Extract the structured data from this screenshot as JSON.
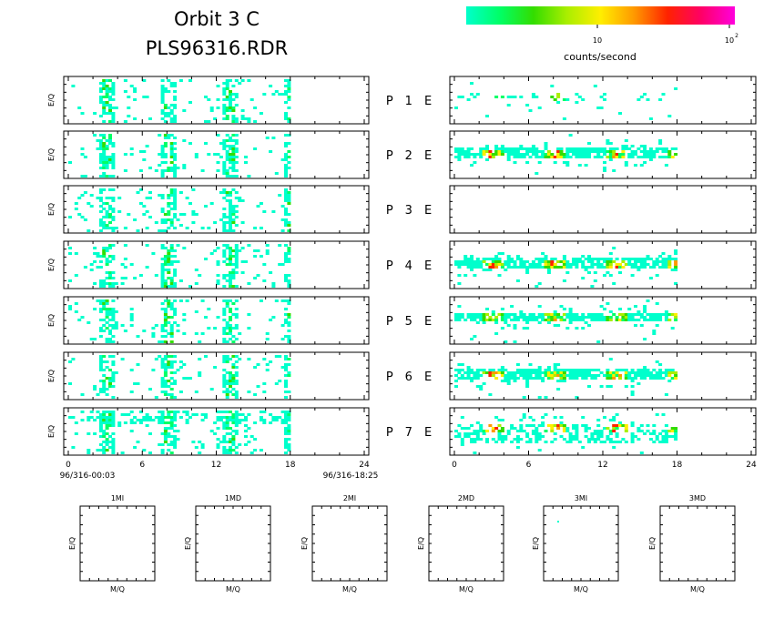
{
  "header": {
    "title_line1": "Orbit 3 C",
    "title_line2": "PLS96316.RDR"
  },
  "colorbar": {
    "label": "counts/second",
    "tick_10": "10",
    "tick_100_base": "10",
    "tick_100_exp": "2",
    "colors": [
      "#00ffcc",
      "#00ff66",
      "#33dd00",
      "#aaee00",
      "#ffee00",
      "#ff9900",
      "#ff2200",
      "#ff0066",
      "#ff00dd"
    ]
  },
  "panels": {
    "ylabel": "E/Q",
    "row_labels": [
      "P 1 E",
      "P 2 E",
      "P 3 E",
      "P 4 E",
      "P 5 E",
      "P 6 E",
      "P 7 E"
    ],
    "x_ticks": [
      "0",
      "6",
      "12",
      "18",
      "24"
    ],
    "start_time": "96/316-00:03",
    "end_time": "96/316-18:25"
  },
  "bottom_panels": {
    "titles": [
      "1MI",
      "1MD",
      "2MI",
      "2MD",
      "3MI",
      "3MD"
    ],
    "xlabel": "M/Q",
    "ylabel": "E/Q"
  },
  "chart_data": {
    "type": "heatmap",
    "x_range": [
      0,
      24
    ],
    "x_unit": "hours",
    "burst_centers_hours": [
      3,
      8,
      13,
      18
    ],
    "left_intensity": [
      2,
      2,
      2,
      2,
      2,
      2,
      3
    ],
    "right_intensity": [
      1,
      4,
      0,
      4,
      3,
      4,
      4
    ]
  }
}
